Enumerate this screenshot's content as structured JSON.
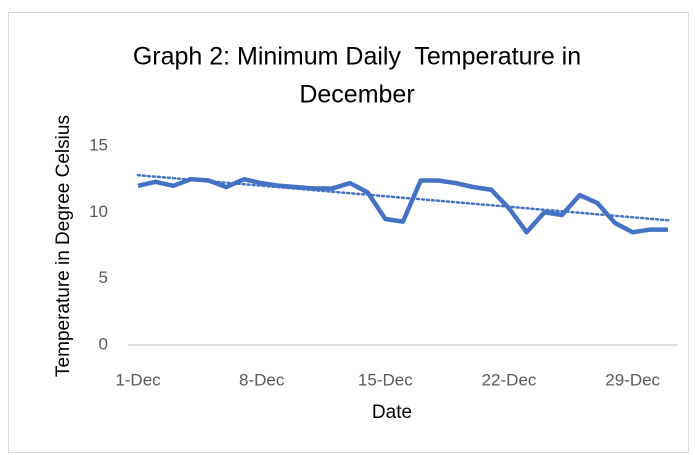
{
  "chart_data": {
    "type": "line",
    "title": [
      "Graph 2: Minimum Daily  Temperature in",
      "December"
    ],
    "x_label": "Date",
    "y_label": "Temperature in Degree Celsius",
    "categories": [
      "1-Dec",
      null,
      null,
      null,
      null,
      null,
      null,
      "8-Dec",
      null,
      null,
      null,
      null,
      null,
      null,
      "15-Dec",
      null,
      null,
      null,
      null,
      null,
      null,
      "22-Dec",
      null,
      null,
      null,
      null,
      null,
      null,
      "29-Dec",
      null,
      null
    ],
    "series": [
      {
        "name": "Minimum Daily Temperature",
        "color": "#4472c4",
        "values": [
          12.0,
          12.3,
          12.0,
          12.5,
          12.4,
          11.9,
          12.5,
          12.2,
          12.0,
          11.9,
          11.8,
          11.8,
          12.2,
          11.5,
          9.5,
          9.3,
          12.4,
          12.4,
          12.2,
          11.9,
          11.7,
          10.3,
          8.5,
          10.0,
          9.8,
          11.3,
          10.7,
          9.2,
          8.5,
          8.7,
          8.7
        ]
      }
    ],
    "trendline": {
      "color": "#4472c4",
      "values": [
        12.8,
        9.4
      ]
    },
    "ylim": [
      0,
      15
    ],
    "yticks": [
      0,
      5,
      10,
      15
    ],
    "grid": false
  }
}
